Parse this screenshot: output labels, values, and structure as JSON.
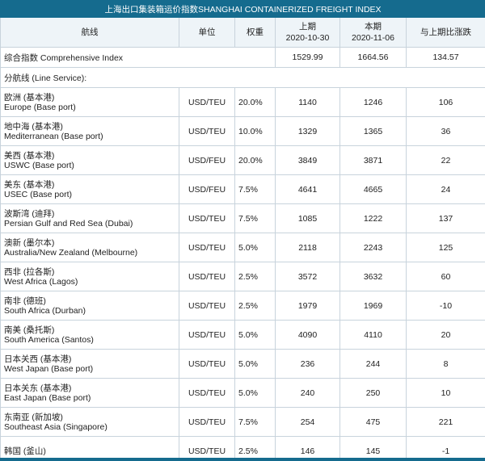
{
  "title": "上海出口集装箱运价指数SHANGHAI CONTAINERIZED FREIGHT INDEX",
  "headers": {
    "route": "航线",
    "unit": "单位",
    "weight": "权重",
    "prev_label": "上期",
    "prev_date": "2020-10-30",
    "curr_label": "本期",
    "curr_date": "2020-11-06",
    "change": "与上期比涨跌"
  },
  "composite": {
    "label": "综合指数 Comprehensive Index",
    "prev": "1529.99",
    "curr": "1664.56",
    "change": "134.57"
  },
  "section_label": "分航线 (Line Service):",
  "rows": [
    {
      "zh": "欧洲 (基本港)",
      "en": "Europe (Base port)",
      "unit": "USD/TEU",
      "weight": "20.0%",
      "prev": "1140",
      "curr": "1246",
      "change": "106"
    },
    {
      "zh": "地中海 (基本港)",
      "en": "Mediterranean (Base port)",
      "unit": "USD/TEU",
      "weight": "10.0%",
      "prev": "1329",
      "curr": "1365",
      "change": "36"
    },
    {
      "zh": "美西 (基本港)",
      "en": "USWC (Base port)",
      "unit": "USD/FEU",
      "weight": "20.0%",
      "prev": "3849",
      "curr": "3871",
      "change": "22"
    },
    {
      "zh": "美东 (基本港)",
      "en": "USEC (Base port)",
      "unit": "USD/FEU",
      "weight": "7.5%",
      "prev": "4641",
      "curr": "4665",
      "change": "24"
    },
    {
      "zh": "波斯湾 (迪拜)",
      "en": "Persian Gulf and Red Sea (Dubai)",
      "unit": "USD/TEU",
      "weight": "7.5%",
      "prev": "1085",
      "curr": "1222",
      "change": "137"
    },
    {
      "zh": "澳新 (墨尔本)",
      "en": "Australia/New Zealand (Melbourne)",
      "unit": "USD/TEU",
      "weight": "5.0%",
      "prev": "2118",
      "curr": "2243",
      "change": "125"
    },
    {
      "zh": "西非 (拉各斯)",
      "en": "West Africa (Lagos)",
      "unit": "USD/TEU",
      "weight": "2.5%",
      "prev": "3572",
      "curr": "3632",
      "change": "60"
    },
    {
      "zh": "南非 (德班)",
      "en": "South Africa (Durban)",
      "unit": "USD/TEU",
      "weight": "2.5%",
      "prev": "1979",
      "curr": "1969",
      "change": "-10"
    },
    {
      "zh": "南美 (桑托斯)",
      "en": "South America (Santos)",
      "unit": "USD/TEU",
      "weight": "5.0%",
      "prev": "4090",
      "curr": "4110",
      "change": "20"
    },
    {
      "zh": "日本关西 (基本港)",
      "en": "West Japan (Base port)",
      "unit": "USD/TEU",
      "weight": "5.0%",
      "prev": "236",
      "curr": "244",
      "change": "8"
    },
    {
      "zh": "日本关东 (基本港)",
      "en": "East Japan (Base port)",
      "unit": "USD/TEU",
      "weight": "5.0%",
      "prev": "240",
      "curr": "250",
      "change": "10"
    },
    {
      "zh": "东南亚 (新加坡)",
      "en": "Southeast Asia (Singapore)",
      "unit": "USD/TEU",
      "weight": "7.5%",
      "prev": "254",
      "curr": "475",
      "change": "221"
    },
    {
      "zh": "韩国 (釜山)",
      "en": "",
      "unit": "USD/TEU",
      "weight": "2.5%",
      "prev": "146",
      "curr": "145",
      "change": "-1"
    }
  ]
}
